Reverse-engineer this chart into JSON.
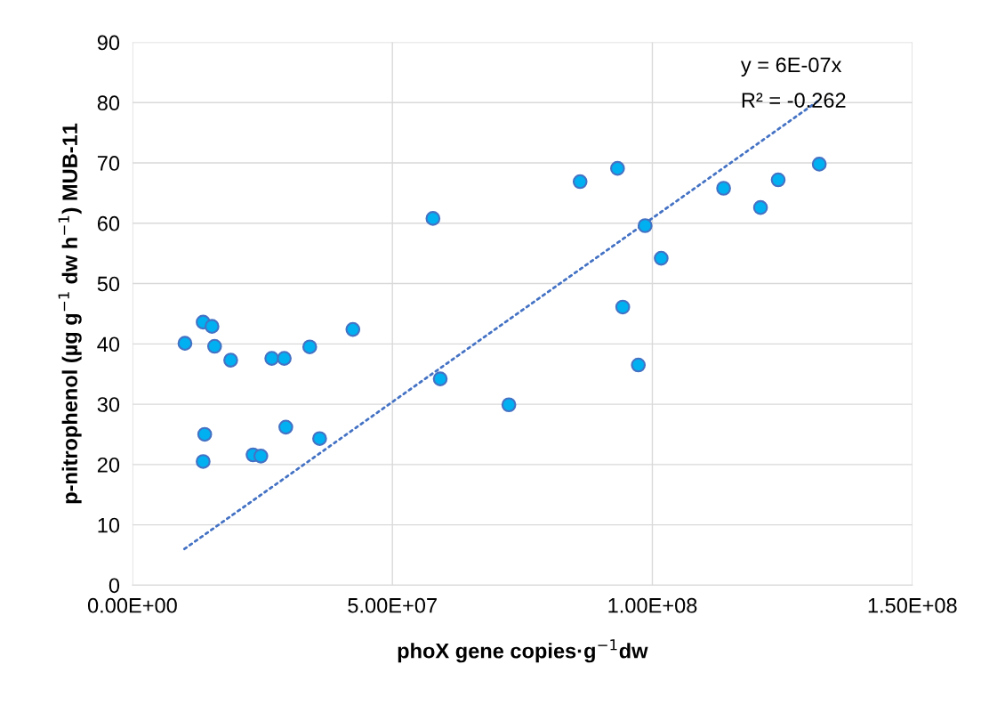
{
  "chart_data": {
    "type": "scatter",
    "xlabel": "phoX gene copies·g$^{−1}$dw",
    "ylabel": "p-nitrophenol (µg g$^{−1}$ dw h$^{−1}$) MUB-11",
    "xlim": [
      0,
      150000000
    ],
    "xticks": [
      {
        "value": 0,
        "label": "0.00E+00"
      },
      {
        "value": 50000000,
        "label": "5.00E+07"
      },
      {
        "value": 100000000,
        "label": "1.00E+08"
      },
      {
        "value": 150000000,
        "label": "1.50E+08"
      }
    ],
    "ylim": [
      0,
      90
    ],
    "yticks": [
      0,
      10,
      20,
      30,
      40,
      50,
      60,
      70,
      80,
      90
    ],
    "grid": true,
    "series": [
      {
        "color": "#00b0f0",
        "marker": "circle",
        "x": [
          10100000,
          13600000,
          15300000,
          15800000,
          18900000,
          26800000,
          29200000,
          34100000,
          42400000,
          13900000,
          13600000,
          23200000,
          24700000,
          29500000,
          36000000,
          57800000,
          59200000,
          72400000,
          86100000,
          93300000,
          94300000,
          97300000,
          98600000,
          101700000,
          113700000,
          120800000,
          124200000,
          132100000
        ],
        "values": [
          40.1,
          43.6,
          42.9,
          39.6,
          37.3,
          37.6,
          37.6,
          39.5,
          42.4,
          25.0,
          20.5,
          21.6,
          21.4,
          26.2,
          24.3,
          60.8,
          34.2,
          29.9,
          66.9,
          69.1,
          46.1,
          36.5,
          59.6,
          54.2,
          65.8,
          62.6,
          67.2,
          69.8
        ]
      },
      {
        "type": "line",
        "color": "#4472c4",
        "line_style": "dotted",
        "marker": "none",
        "x": [
          10000000,
          132100000
        ],
        "values": [
          6.0,
          80.4
        ]
      }
    ],
    "annotations": [
      "y = 6E-07x",
      "R² = -0.262"
    ]
  }
}
